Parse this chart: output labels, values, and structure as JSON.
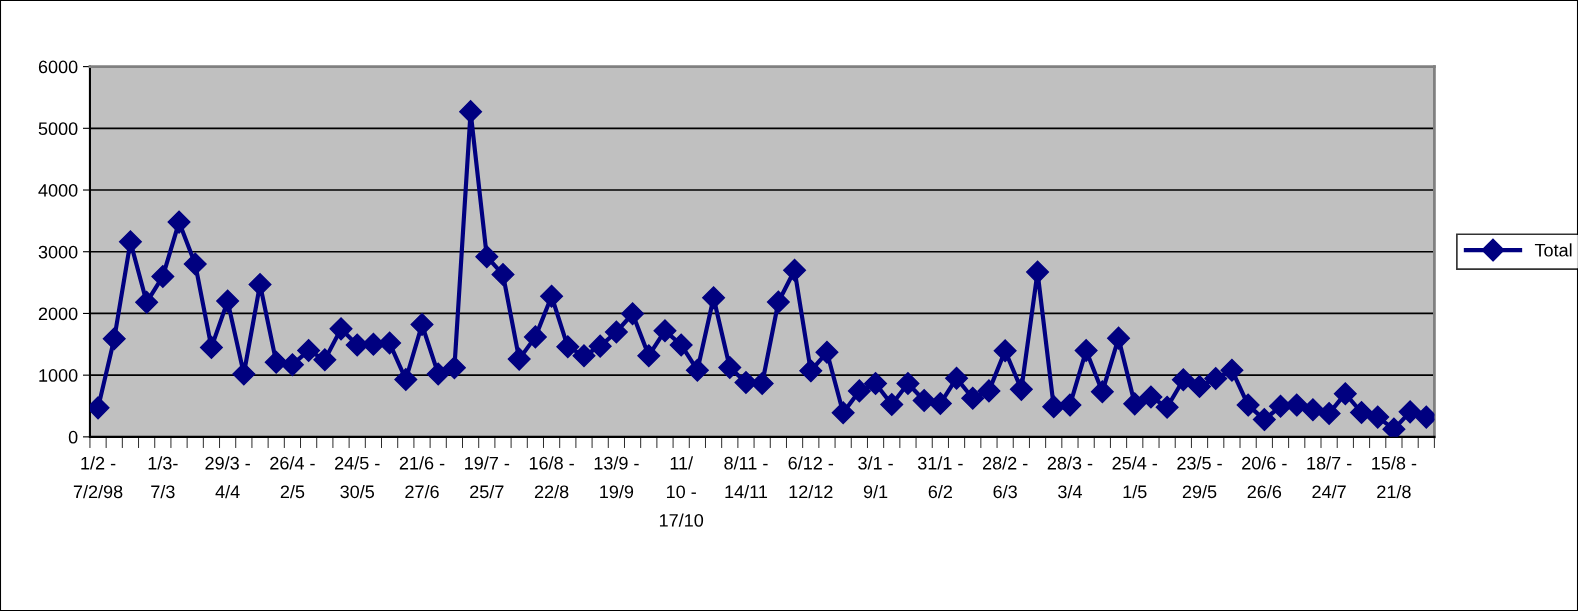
{
  "chart_data": {
    "type": "line",
    "categories": [
      "1/2 -\n7/2/98",
      null,
      null,
      null,
      "1/3-\n7/3",
      null,
      null,
      null,
      "29/3 -\n4/4",
      null,
      null,
      null,
      "26/4 -\n2/5",
      null,
      null,
      null,
      "24/5 -\n30/5",
      null,
      null,
      null,
      "21/6 -\n27/6",
      null,
      null,
      null,
      "19/7 -\n25/7",
      null,
      null,
      null,
      "16/8 -\n22/8",
      null,
      null,
      null,
      "13/9 -\n19/9",
      null,
      null,
      null,
      "11/\n10 -\n17/10",
      null,
      null,
      null,
      "8/11 -\n14/11",
      null,
      null,
      null,
      "6/12 -\n12/12",
      null,
      null,
      null,
      "3/1 -\n9/1",
      null,
      null,
      null,
      "31/1 -\n6/2",
      null,
      null,
      null,
      "28/2 -\n6/3",
      null,
      null,
      null,
      "28/3 -\n3/4",
      null,
      null,
      null,
      "25/4 -\n1/5",
      null,
      null,
      null,
      "23/5 -\n29/5",
      null,
      null,
      null,
      "20/6 -\n26/6",
      null,
      null,
      null,
      "18/7 -\n24/7",
      null,
      null,
      null,
      "15/8 -\n21/8",
      null,
      null
    ],
    "series": [
      {
        "name": "Total",
        "color": "#000080",
        "values": [
          470,
          1590,
          3160,
          2180,
          2600,
          3480,
          2800,
          1450,
          2200,
          1020,
          2470,
          1210,
          1170,
          1400,
          1250,
          1750,
          1490,
          1500,
          1520,
          930,
          1820,
          1020,
          1120,
          5270,
          2920,
          2630,
          1260,
          1620,
          2280,
          1460,
          1315,
          1470,
          1700,
          1995,
          1315,
          1720,
          1490,
          1080,
          2255,
          1125,
          880,
          865,
          2185,
          2700,
          1070,
          1370,
          390,
          745,
          865,
          525,
          865,
          590,
          540,
          950,
          625,
          745,
          1395,
          770,
          2670,
          490,
          515,
          1400,
          730,
          1600,
          535,
          645,
          480,
          925,
          815,
          945,
          1080,
          515,
          280,
          495,
          515,
          440,
          380,
          700,
          395,
          320,
          125,
          405,
          320
        ]
      }
    ],
    "ylim": [
      0,
      6000
    ],
    "yticks": [
      0,
      1000,
      2000,
      3000,
      4000,
      5000,
      6000
    ],
    "grid": "y",
    "legend": "right",
    "marker": "diamond",
    "line_style": "solid"
  }
}
